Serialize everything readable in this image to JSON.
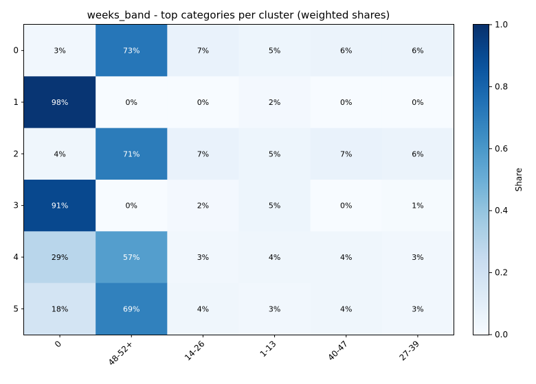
{
  "chart_data": {
    "type": "heatmap",
    "title": "weeks_band - top categories per cluster (weighted shares)",
    "x_categories": [
      "0",
      "48-52+",
      "14-26",
      "1-13",
      "40-47",
      "27-39"
    ],
    "y_categories": [
      "0",
      "1",
      "2",
      "3",
      "4",
      "5"
    ],
    "values": [
      [
        0.03,
        0.73,
        0.07,
        0.05,
        0.06,
        0.06
      ],
      [
        0.98,
        0.0,
        0.0,
        0.02,
        0.0,
        0.0
      ],
      [
        0.04,
        0.71,
        0.07,
        0.05,
        0.07,
        0.06
      ],
      [
        0.91,
        0.0,
        0.02,
        0.05,
        0.0,
        0.01
      ],
      [
        0.29,
        0.57,
        0.03,
        0.04,
        0.04,
        0.03
      ],
      [
        0.18,
        0.69,
        0.04,
        0.03,
        0.04,
        0.03
      ]
    ],
    "cell_labels": [
      [
        "3%",
        "73%",
        "7%",
        "5%",
        "6%",
        "6%"
      ],
      [
        "98%",
        "0%",
        "0%",
        "2%",
        "0%",
        "0%"
      ],
      [
        "4%",
        "71%",
        "7%",
        "5%",
        "7%",
        "6%"
      ],
      [
        "91%",
        "0%",
        "2%",
        "5%",
        "0%",
        "1%"
      ],
      [
        "29%",
        "57%",
        "3%",
        "4%",
        "4%",
        "3%"
      ],
      [
        "18%",
        "69%",
        "4%",
        "3%",
        "4%",
        "3%"
      ]
    ],
    "colorbar": {
      "label": "Share",
      "range": [
        0,
        1
      ],
      "ticks": [
        "0.0",
        "0.2",
        "0.4",
        "0.6",
        "0.8",
        "1.0"
      ],
      "colormap": "Blues"
    }
  }
}
